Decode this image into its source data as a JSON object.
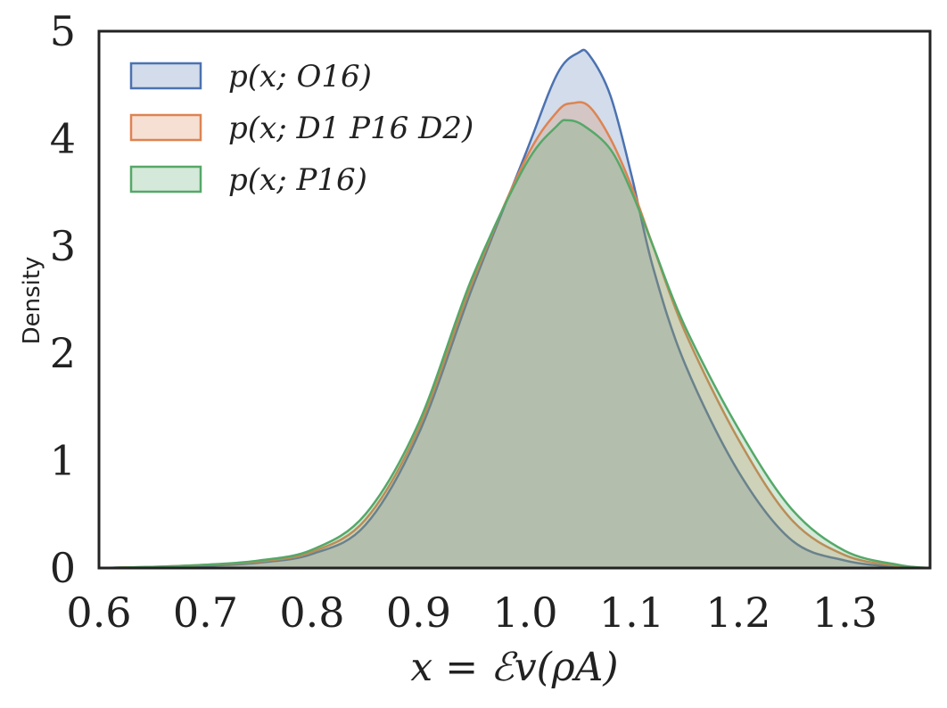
{
  "chart_data": {
    "type": "area",
    "xlabel": "x = ℰv(ρA)",
    "ylabel": "Density",
    "xlim": [
      0.6,
      1.38
    ],
    "ylim": [
      0,
      5
    ],
    "xticks": [
      0.6,
      0.7,
      0.8,
      0.9,
      1.0,
      1.1,
      1.2,
      1.3
    ],
    "xtick_labels": [
      "0.6",
      "0.7",
      "0.8",
      "0.9",
      "1.0",
      "1.1",
      "1.2",
      "1.3"
    ],
    "yticks": [
      0,
      1,
      2,
      3,
      4,
      5
    ],
    "ytick_labels": [
      "0",
      "1",
      "2",
      "3",
      "4",
      "5"
    ],
    "grid": false,
    "legend_position": "top-left",
    "series": [
      {
        "name": "p(x; O16)",
        "color": "#4c72b0",
        "fill_opacity": 0.25,
        "x": [
          0.6,
          0.65,
          0.7,
          0.75,
          0.8,
          0.85,
          0.9,
          0.95,
          1.0,
          1.03,
          1.05,
          1.06,
          1.08,
          1.1,
          1.12,
          1.15,
          1.2,
          1.25,
          1.3,
          1.35,
          1.38
        ],
        "y": [
          0.0,
          0.01,
          0.02,
          0.05,
          0.13,
          0.4,
          1.25,
          2.6,
          3.85,
          4.6,
          4.8,
          4.78,
          4.4,
          3.65,
          2.8,
          1.9,
          0.9,
          0.26,
          0.07,
          0.01,
          0.0
        ]
      },
      {
        "name": "p(x; D1 P16 D2)",
        "color": "#dd8452",
        "fill_opacity": 0.25,
        "x": [
          0.6,
          0.65,
          0.7,
          0.75,
          0.8,
          0.85,
          0.9,
          0.95,
          1.0,
          1.03,
          1.045,
          1.06,
          1.08,
          1.1,
          1.12,
          1.15,
          1.2,
          1.25,
          1.3,
          1.35,
          1.38
        ],
        "y": [
          0.0,
          0.01,
          0.03,
          0.06,
          0.15,
          0.45,
          1.3,
          2.65,
          3.8,
          4.25,
          4.33,
          4.3,
          4.0,
          3.55,
          3.0,
          2.2,
          1.2,
          0.45,
          0.12,
          0.02,
          0.0
        ]
      },
      {
        "name": "p(x; P16)",
        "color": "#55a868",
        "fill_opacity": 0.25,
        "x": [
          0.6,
          0.65,
          0.7,
          0.75,
          0.8,
          0.85,
          0.9,
          0.95,
          1.0,
          1.03,
          1.04,
          1.055,
          1.08,
          1.1,
          1.12,
          1.15,
          1.2,
          1.25,
          1.3,
          1.35,
          1.38
        ],
        "y": [
          0.0,
          0.01,
          0.03,
          0.07,
          0.17,
          0.5,
          1.35,
          2.7,
          3.75,
          4.12,
          4.17,
          4.12,
          3.9,
          3.5,
          3.0,
          2.25,
          1.3,
          0.55,
          0.16,
          0.03,
          0.0
        ]
      }
    ]
  }
}
